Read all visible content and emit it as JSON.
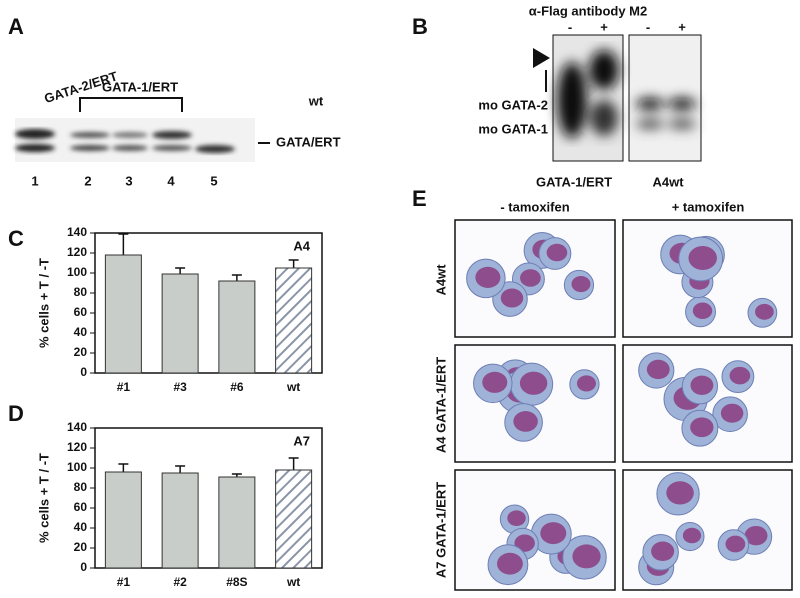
{
  "panel_labels": [
    "A",
    "B",
    "C",
    "D",
    "E"
  ],
  "blot_a": {
    "group_labels": [
      "GATA-2/ERT",
      "GATA-1/ERT",
      "wt"
    ],
    "band_label": "GATA/ERT",
    "lanes": [
      "1",
      "2",
      "3",
      "4",
      "5"
    ]
  },
  "blot_b": {
    "header": "α-Flag antibody M2",
    "signs": [
      "-",
      "+",
      "-",
      "+"
    ],
    "band_labels": [
      "mo GATA-2",
      "mo GATA-1"
    ],
    "lane_groups": [
      "GATA-1/ERT",
      "A4wt"
    ]
  },
  "chart_data": [
    {
      "type": "bar",
      "annotation": "A4",
      "y_label": "% cells + T / -T",
      "categories": [
        "#1",
        "#3",
        "#6",
        "wt"
      ],
      "values": [
        118,
        99,
        92,
        105
      ],
      "errors": [
        21,
        6,
        6,
        8
      ],
      "hatched": [
        false,
        false,
        false,
        true
      ],
      "color": "#c9cdc9",
      "ylim": [
        0,
        140
      ],
      "yticks": [
        0,
        20,
        40,
        60,
        80,
        100,
        120,
        140
      ]
    },
    {
      "type": "bar",
      "annotation": "A7",
      "y_label": "% cells + T / -T",
      "categories": [
        "#1",
        "#2",
        "#8S",
        "wt"
      ],
      "values": [
        96,
        95,
        91,
        98
      ],
      "errors": [
        8,
        7,
        3,
        12
      ],
      "hatched": [
        false,
        false,
        false,
        true
      ],
      "color": "#c9cdc9",
      "ylim": [
        0,
        140
      ],
      "yticks": [
        0,
        20,
        40,
        60,
        80,
        100,
        120,
        140
      ]
    }
  ],
  "micrographs": {
    "columns": [
      "- tamoxifen",
      "+ tamoxifen"
    ],
    "rows": [
      "A4wt",
      "A4 GATA-1/ERT",
      "A7 GATA-1/ERT"
    ]
  }
}
